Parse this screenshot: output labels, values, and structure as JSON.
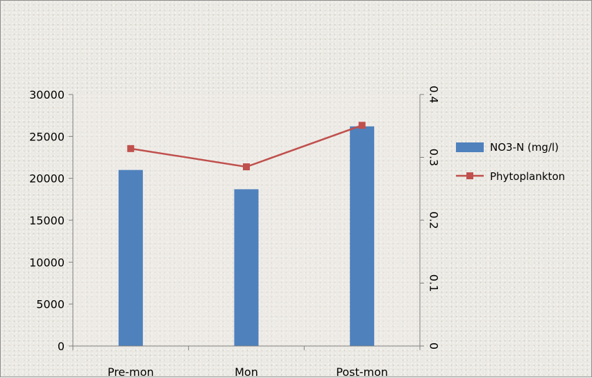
{
  "chart_data": {
    "type": "bar",
    "categories": [
      "Pre-mon",
      "Mon",
      "Post-mon"
    ],
    "series": [
      {
        "name": "NO3-N (mg/l)",
        "type": "bar",
        "axis": "left",
        "color": "#4f81bd",
        "values": [
          21000,
          18700,
          26200
        ]
      },
      {
        "name": "Phytoplankton",
        "type": "line",
        "axis": "right",
        "color": "#c0504d",
        "marker": "square",
        "values": [
          0.314,
          0.285,
          0.351
        ]
      }
    ],
    "y_left": {
      "min": 0,
      "max": 30000,
      "ticks": [
        "0",
        "5000",
        "10000",
        "15000",
        "20000",
        "25000",
        "30000"
      ]
    },
    "y_right": {
      "min": 0,
      "max": 0.4,
      "ticks": [
        "0",
        "0.1",
        "0.2",
        "0.3",
        "0.4"
      ]
    },
    "grid": false,
    "legend_position": "right"
  }
}
